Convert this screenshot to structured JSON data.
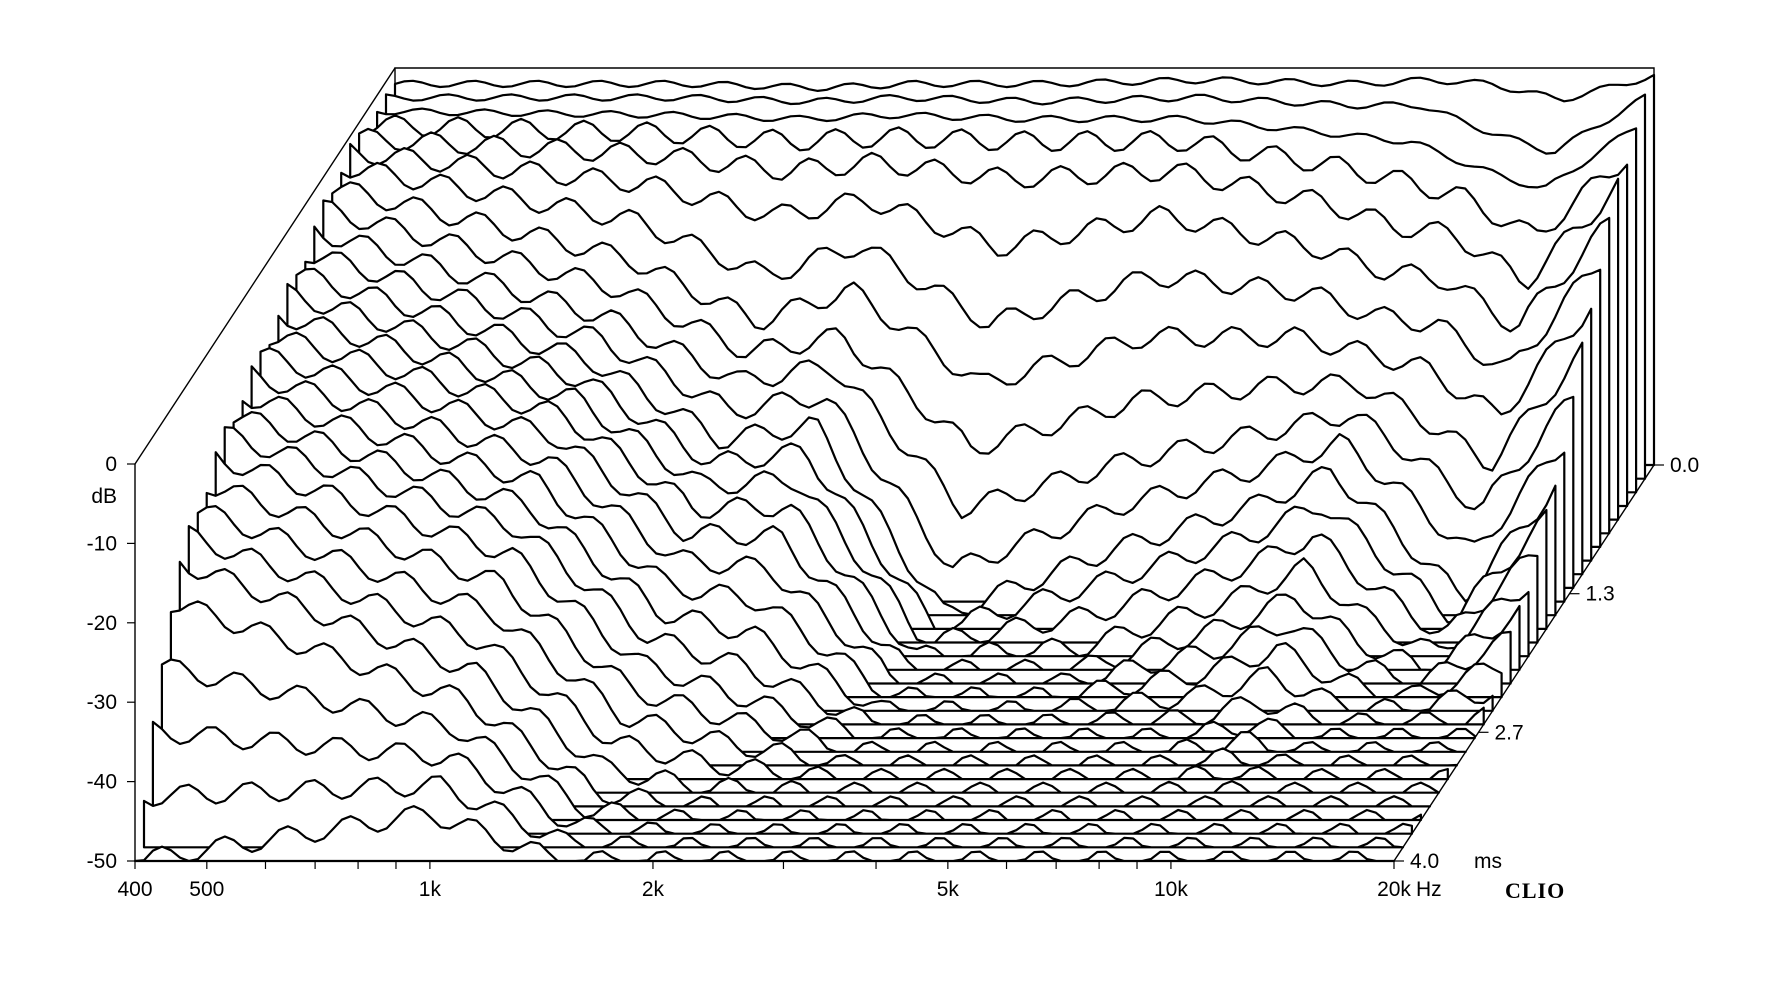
{
  "chart_data": {
    "type": "waterfall",
    "xlabel_unit": "Hz",
    "ylabel": "dB",
    "zlabel_unit": "ms",
    "x_ticks": [
      "400",
      "500",
      "1k",
      "2k",
      "5k",
      "10k",
      "20k"
    ],
    "x_scale": "log",
    "xlim": [
      400,
      20000
    ],
    "ylim": [
      -50,
      0
    ],
    "y_ticks": [
      "0",
      "-10",
      "-20",
      "-30",
      "-40",
      "-50"
    ],
    "z_ticks": [
      "0.0",
      "1.3",
      "2.7",
      "4.0"
    ],
    "zlim": [
      0,
      4.0
    ],
    "slice_count": 30,
    "series": [
      {
        "time_ms": 0.0,
        "freq": [
          400,
          1000,
          1500,
          2000,
          3000,
          5000,
          8000,
          10000,
          12000,
          15000,
          20000
        ],
        "db": [
          -2,
          -2,
          -2.5,
          -2,
          -2,
          -1.5,
          -2,
          -1.5,
          -2,
          -4,
          -1
        ]
      },
      {
        "time_ms": 0.14,
        "freq": [
          400,
          1000,
          1500,
          2000,
          3000,
          5000,
          8000,
          10000,
          12000,
          15000,
          20000
        ],
        "db": [
          -2,
          -2,
          -2.5,
          -2,
          -2.5,
          -2,
          -3,
          -3,
          -6,
          -9,
          -2
        ]
      },
      {
        "time_ms": 0.28,
        "freq": [
          400,
          1000,
          1500,
          2000,
          3000,
          5000,
          8000,
          10000,
          12000,
          15000,
          20000
        ],
        "db": [
          -2,
          -2.5,
          -3,
          -2.5,
          -3,
          -3,
          -5,
          -6,
          -9,
          -12,
          -4
        ]
      },
      {
        "time_ms": 0.41,
        "freq": [
          400,
          1000,
          1500,
          2000,
          3000,
          5000,
          8000,
          10000,
          12000,
          15000,
          20000
        ],
        "db": [
          -2,
          -3,
          -4,
          -3.5,
          -4,
          -4,
          -7,
          -9,
          -11,
          -16,
          -6
        ]
      },
      {
        "time_ms": 0.55,
        "freq": [
          400,
          1000,
          1500,
          2000,
          3000,
          5000,
          8000,
          10000,
          12000,
          15000,
          20000
        ],
        "db": [
          -2,
          -4,
          -6,
          -5,
          -7,
          -6,
          -10,
          -13,
          -14,
          -20,
          -8
        ]
      },
      {
        "time_ms": 0.69,
        "freq": [
          400,
          1000,
          1500,
          2000,
          3000,
          5000,
          8000,
          10000,
          12000,
          15000,
          20000
        ],
        "db": [
          -2,
          -6,
          -10,
          -8,
          -14,
          -10,
          -14,
          -17,
          -18,
          -24,
          -11
        ]
      },
      {
        "time_ms": 0.83,
        "freq": [
          400,
          1000,
          1500,
          2000,
          3000,
          5000,
          8000,
          10000,
          12000,
          15000,
          20000
        ],
        "db": [
          -2,
          -9,
          -16,
          -12,
          -22,
          -16,
          -18,
          -21,
          -22,
          -28,
          -14
        ]
      },
      {
        "time_ms": 0.97,
        "freq": [
          400,
          1000,
          1500,
          2000,
          3000,
          5000,
          8000,
          10000,
          12000,
          15000,
          20000
        ],
        "db": [
          -3,
          -12,
          -20,
          -16,
          -28,
          -22,
          -22,
          -24,
          -26,
          -32,
          -18
        ]
      },
      {
        "time_ms": 1.1,
        "freq": [
          400,
          1000,
          1500,
          2000,
          3000,
          5000,
          8000,
          10000,
          12000,
          15000,
          20000
        ],
        "db": [
          -4,
          -14,
          -22,
          -20,
          -34,
          -28,
          -26,
          -26,
          -30,
          -36,
          -22
        ]
      },
      {
        "time_ms": 1.24,
        "freq": [
          400,
          1000,
          1500,
          2000,
          3000,
          5000,
          8000,
          10000,
          12000,
          15000,
          20000
        ],
        "db": [
          -5,
          -16,
          -24,
          -22,
          -40,
          -34,
          -30,
          -28,
          -33,
          -40,
          -26
        ]
      },
      {
        "time_ms": 1.38,
        "freq": [
          400,
          1000,
          1500,
          2000,
          3000,
          5000,
          8000,
          10000,
          12000,
          15000,
          20000
        ],
        "db": [
          -6,
          -17,
          -26,
          -24,
          -46,
          -38,
          -33,
          -30,
          -36,
          -44,
          -30
        ]
      },
      {
        "time_ms": 1.52,
        "freq": [
          400,
          1000,
          1500,
          2000,
          3000,
          5000,
          8000,
          10000,
          12000,
          15000,
          20000
        ],
        "db": [
          -7,
          -18,
          -28,
          -26,
          -50,
          -42,
          -36,
          -32,
          -39,
          -48,
          -34
        ]
      },
      {
        "time_ms": 2.0,
        "freq": [
          400,
          1000,
          1500,
          2000,
          3000,
          5000,
          8000,
          10000,
          12000,
          15000,
          20000
        ],
        "db": [
          -10,
          -20,
          -32,
          -32,
          -50,
          -50,
          -44,
          -40,
          -46,
          -50,
          -42
        ]
      },
      {
        "time_ms": 2.7,
        "freq": [
          400,
          1000,
          1500,
          2000,
          3000,
          5000,
          8000,
          10000,
          12000,
          15000,
          20000
        ],
        "db": [
          -14,
          -26,
          -40,
          -44,
          -50,
          -50,
          -50,
          -48,
          -50,
          -50,
          -50
        ]
      },
      {
        "time_ms": 3.4,
        "freq": [
          400,
          1000,
          1500,
          2000,
          3000,
          5000,
          8000,
          10000,
          12000,
          15000,
          20000
        ],
        "db": [
          -22,
          -36,
          -48,
          -50,
          -50,
          -50,
          -50,
          -50,
          -50,
          -50,
          -50
        ]
      },
      {
        "time_ms": 4.0,
        "freq": [
          400,
          1000,
          1500,
          2000,
          3000,
          5000,
          8000,
          10000,
          12000,
          15000,
          20000
        ],
        "db": [
          -50,
          -44,
          -50,
          -50,
          -50,
          -50,
          -50,
          -50,
          -50,
          -50,
          -50
        ]
      }
    ]
  },
  "brand": "CLIO"
}
